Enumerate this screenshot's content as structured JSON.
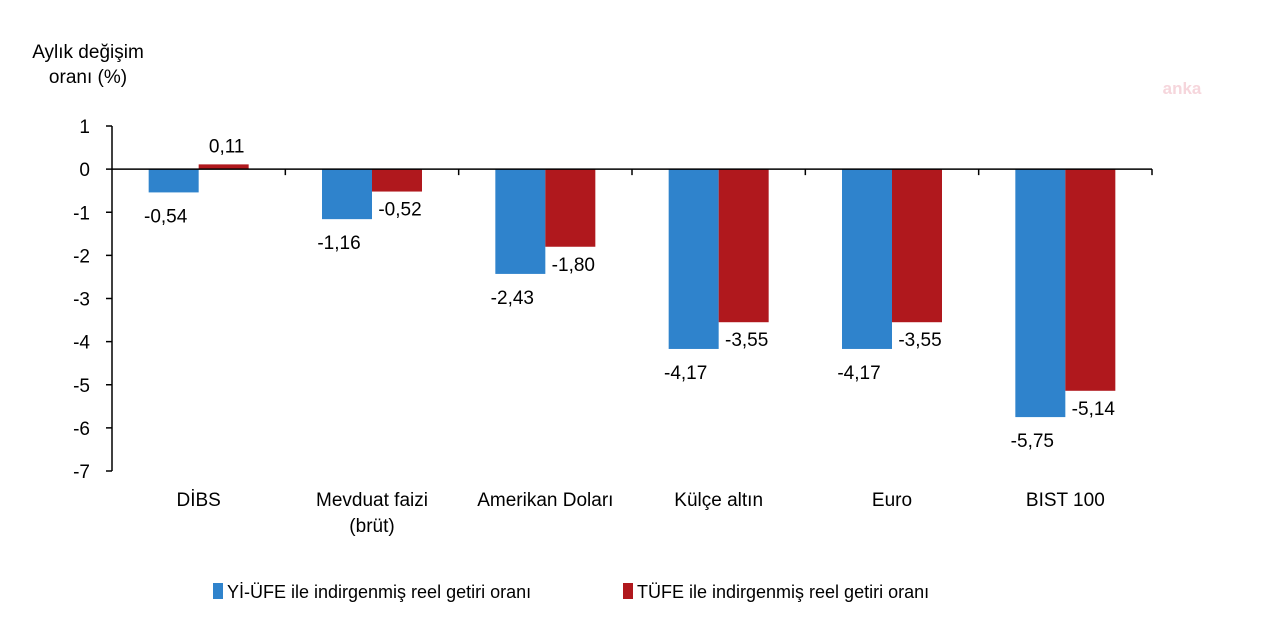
{
  "chart_data": {
    "type": "bar",
    "ylabel_lines": [
      "Aylık değişim",
      "oranı (%)"
    ],
    "ylim": [
      -7,
      1
    ],
    "yticks": [
      1,
      0,
      -1,
      -2,
      -3,
      -4,
      -5,
      -6,
      -7
    ],
    "categories": [
      [
        "DİBS"
      ],
      [
        "Mevduat faizi",
        "(brüt)"
      ],
      [
        "Amerikan Doları"
      ],
      [
        "Külçe altın"
      ],
      [
        "Euro"
      ],
      [
        "BIST 100"
      ]
    ],
    "series": [
      {
        "name": "Yİ-ÜFE ile indirgenmiş reel getiri oranı",
        "color": "#2f83cc",
        "values": [
          -0.54,
          -1.16,
          -2.43,
          -4.17,
          -4.17,
          -5.75
        ],
        "labels": [
          "-0,54",
          "-1,16",
          "-2,43",
          "-4,17",
          "-4,17",
          "-5,75"
        ]
      },
      {
        "name": "TÜFE ile indirgenmiş reel getiri oranı",
        "color": "#b0181d",
        "values": [
          0.11,
          -0.52,
          -1.8,
          -3.55,
          -3.55,
          -5.14
        ],
        "labels": [
          "0,11",
          "-0,52",
          "-1,80",
          "-3,55",
          "-3,55",
          "-5,14"
        ]
      }
    ],
    "legend_position": "bottom",
    "grid": false
  },
  "watermark": "anka"
}
